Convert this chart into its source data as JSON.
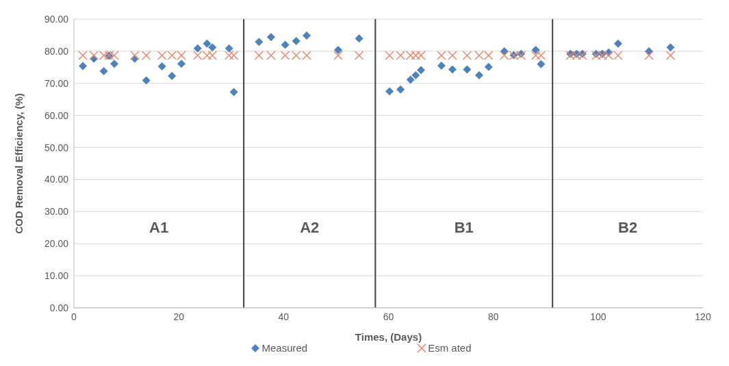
{
  "chart_data": {
    "type": "scatter",
    "xlabel": "Times, (Days)",
    "ylabel": "COD Removal Efficiency, (%)",
    "xlim": [
      0,
      120
    ],
    "xticks": [
      0,
      20,
      40,
      60,
      80,
      100,
      120
    ],
    "ylim": [
      0,
      90
    ],
    "yticks": [
      {
        "value": 0,
        "label": "0.00"
      },
      {
        "value": 10,
        "label": "10.00"
      },
      {
        "value": 20,
        "label": "20.00"
      },
      {
        "value": 30,
        "label": "30.00"
      },
      {
        "value": 40,
        "label": "40.00"
      },
      {
        "value": 50,
        "label": "50.00"
      },
      {
        "value": 60,
        "label": "60.00"
      },
      {
        "value": 70,
        "label": "70.00"
      },
      {
        "value": 80,
        "label": "80.00"
      },
      {
        "value": 90,
        "label": "90.00"
      }
    ],
    "grid": "y",
    "legend": "bottom",
    "series": [
      {
        "name": "Measured",
        "color": "#4f81bd",
        "marker": "diamond",
        "x": [
          1.7,
          3.8,
          5.7,
          6.7,
          7.7,
          11.6,
          13.8,
          16.8,
          18.7,
          20.5,
          23.6,
          25.4,
          26.4,
          29.6,
          30.5,
          35.3,
          37.6,
          40.3,
          42.4,
          44.4,
          50.4,
          54.4,
          60.2,
          62.3,
          64.2,
          65.2,
          66.2,
          70.1,
          72.2,
          75,
          77.3,
          79.1,
          82.1,
          83.9,
          85.3,
          88.1,
          89.1,
          94.7,
          95.9,
          97,
          99.6,
          100.8,
          102,
          103.8,
          109.7,
          113.8
        ],
        "values": [
          75.4,
          77.7,
          73.8,
          78.6,
          76.1,
          77.7,
          70.9,
          75.3,
          72.3,
          76.1,
          80.9,
          82.4,
          81.2,
          80.9,
          67.3,
          82.9,
          84.4,
          82,
          83.2,
          84.9,
          80.4,
          84,
          67.5,
          68.1,
          71.1,
          72.5,
          74.1,
          75.5,
          74.3,
          74.3,
          72.5,
          75.1,
          80,
          78.8,
          79.2,
          80.4,
          76,
          79.2,
          79.2,
          79.2,
          79.2,
          79.2,
          79.6,
          82.4,
          80,
          81.2
        ]
      },
      {
        "name": "Esm ated",
        "color": "#e8896b",
        "marker": "cross",
        "x": [
          1.7,
          3.8,
          5.7,
          6.7,
          7.7,
          11.6,
          13.8,
          16.8,
          18.7,
          20.5,
          23.6,
          25.4,
          26.4,
          29.6,
          30.5,
          35.3,
          37.6,
          40.3,
          42.4,
          44.4,
          50.4,
          54.4,
          60.2,
          62.3,
          64.2,
          65.2,
          66.2,
          70.1,
          72.2,
          75,
          77.3,
          79.1,
          82.1,
          83.9,
          85.3,
          88.1,
          89.1,
          94.7,
          95.9,
          97,
          99.6,
          100.8,
          102,
          103.8,
          109.7,
          113.8
        ],
        "values": [
          78.7,
          78.7,
          78.7,
          78.7,
          78.7,
          78.7,
          78.7,
          78.7,
          78.7,
          78.7,
          78.7,
          78.7,
          78.7,
          78.7,
          78.7,
          78.7,
          78.7,
          78.7,
          78.7,
          78.7,
          78.7,
          78.7,
          78.7,
          78.7,
          78.7,
          78.7,
          78.7,
          78.7,
          78.7,
          78.7,
          78.7,
          78.7,
          78.7,
          78.7,
          78.7,
          78.7,
          78.7,
          78.7,
          78.7,
          78.7,
          78.7,
          78.7,
          78.7,
          78.7,
          78.7,
          78.7
        ]
      }
    ],
    "ref_lines": [
      {
        "axis": "x",
        "value": 32.4,
        "color": "#404040"
      },
      {
        "axis": "x",
        "value": 57.5,
        "color": "#404040"
      },
      {
        "axis": "x",
        "value": 91.3,
        "color": "#404040"
      }
    ],
    "annotations": [
      "A1",
      "A2",
      "B1",
      "B2"
    ]
  }
}
